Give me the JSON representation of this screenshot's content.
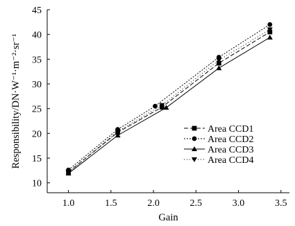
{
  "chart_data": {
    "type": "line",
    "title": "",
    "xlabel": "Gain",
    "ylabel": "Responsibility/DN·W⁻¹·m⁻²·sr⁻¹",
    "xlim": [
      0.75,
      3.6
    ],
    "ylim": [
      8,
      45
    ],
    "xticks": [
      "1.0",
      "1.5",
      "2.0",
      "2.5",
      "3.0",
      "3.5"
    ],
    "xtick_values": [
      1.0,
      1.5,
      2.0,
      2.5,
      3.0,
      3.5
    ],
    "yticks": [
      "10",
      "15",
      "20",
      "25",
      "30",
      "35",
      "40",
      "45"
    ],
    "ytick_values": [
      10,
      15,
      20,
      25,
      30,
      35,
      40,
      45
    ],
    "grid": false,
    "legend_position": "right",
    "series": [
      {
        "name": "Area CCD1",
        "marker": "square",
        "dash": "6,3",
        "x": [
          1.0,
          1.58,
          2.1,
          2.77,
          3.37
        ],
        "y": [
          12.2,
          20.2,
          25.3,
          34.2,
          40.5
        ]
      },
      {
        "name": "Area CCD2",
        "marker": "circle",
        "dash": "2,2",
        "x": [
          1.0,
          1.58,
          2.02,
          2.77,
          3.37
        ],
        "y": [
          12.6,
          20.8,
          25.5,
          35.4,
          42.0
        ]
      },
      {
        "name": "Area CCD3",
        "marker": "triangle-up",
        "dash": "",
        "x": [
          1.0,
          1.58,
          2.15,
          2.77,
          3.37
        ],
        "y": [
          11.9,
          19.6,
          25.2,
          33.2,
          39.4
        ]
      },
      {
        "name": "Area CCD4",
        "marker": "triangle-down",
        "dash": "1,3",
        "x": [
          1.0,
          1.58,
          2.1,
          2.77,
          3.37
        ],
        "y": [
          12.1,
          20.4,
          25.7,
          34.8,
          41.0
        ]
      }
    ]
  }
}
